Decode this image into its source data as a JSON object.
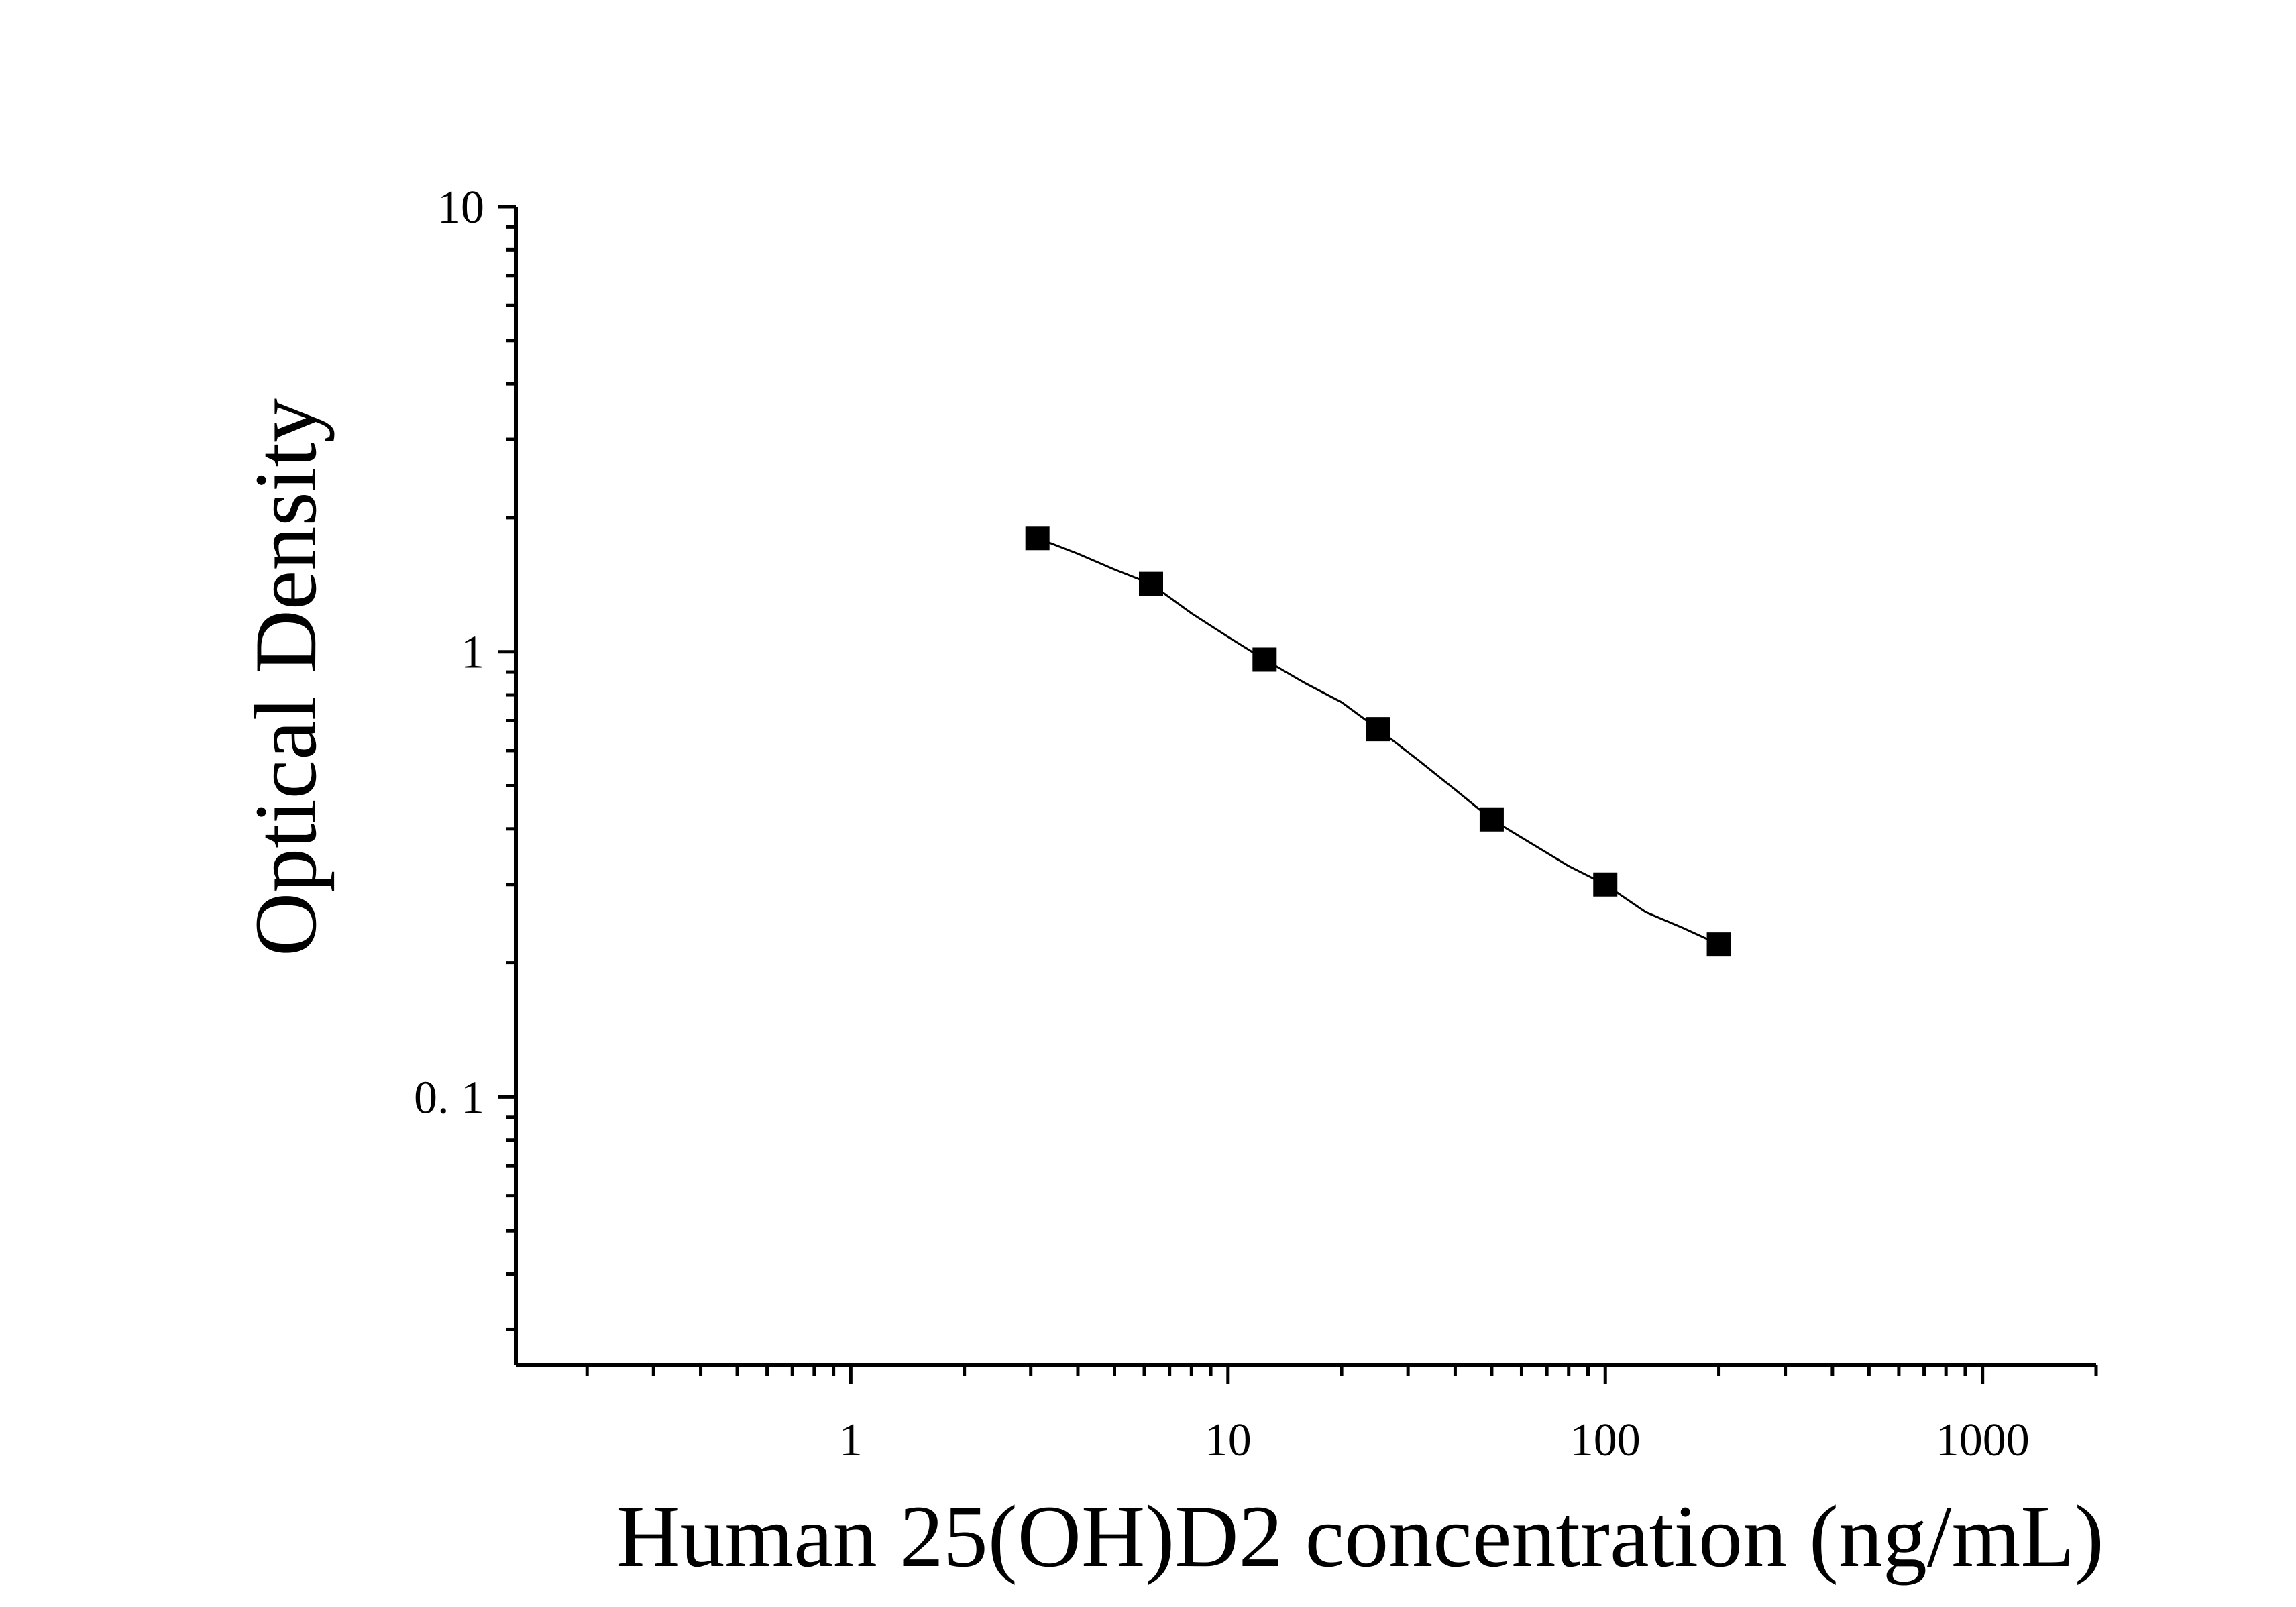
{
  "chart_data": {
    "type": "scatter",
    "title": "",
    "xlabel": "Human 25(OH)D2 concentration (ng/mL)",
    "ylabel": "Optical Density",
    "xscale": "log",
    "yscale": "log",
    "xlim": [
      0.13,
      2000
    ],
    "ylim": [
      0.025,
      10
    ],
    "x_ticks": [
      {
        "value": 1,
        "label": "1"
      },
      {
        "value": 10,
        "label": "10"
      },
      {
        "value": 100,
        "label": "100"
      },
      {
        "value": 1000,
        "label": "1000"
      }
    ],
    "y_ticks": [
      {
        "value": 0.1,
        "label": "0. 1"
      },
      {
        "value": 1,
        "label": "1"
      },
      {
        "value": 10,
        "label": "10"
      }
    ],
    "grid": false,
    "legend": "none",
    "series": [
      {
        "marker": "square",
        "color": "#000000",
        "x": [
          3.125,
          6.25,
          12.5,
          25,
          50,
          100,
          200
        ],
        "y": [
          1.8,
          1.42,
          0.96,
          0.67,
          0.42,
          0.3,
          0.22
        ]
      }
    ],
    "fit_curve": {
      "color": "#000000",
      "x": [
        3.125,
        4,
        5,
        6.25,
        8,
        10,
        12.5,
        16,
        20,
        25,
        32,
        40,
        50,
        64,
        80,
        100,
        128,
        160,
        200
      ],
      "y": [
        1.8,
        1.66,
        1.53,
        1.42,
        1.22,
        1.08,
        0.96,
        0.85,
        0.77,
        0.67,
        0.57,
        0.49,
        0.42,
        0.37,
        0.33,
        0.3,
        0.26,
        0.24,
        0.22
      ]
    }
  }
}
